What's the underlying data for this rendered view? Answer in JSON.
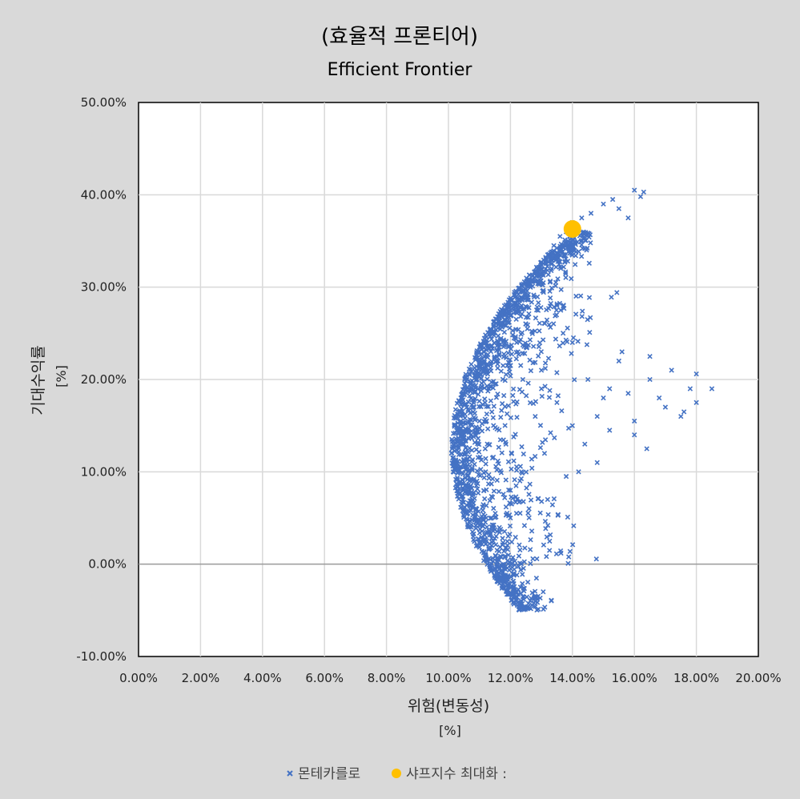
{
  "chart_data": {
    "type": "scatter",
    "title": "(효율적 프론티어)",
    "subtitle": "Efficient Frontier",
    "xlabel": "위험(변동성)",
    "xunit": "[%]",
    "ylabel": "기대수익률",
    "yunit": "[%]",
    "xlim": [
      0,
      20
    ],
    "ylim": [
      -10,
      50
    ],
    "xticks": [
      "0.00%",
      "2.00%",
      "4.00%",
      "6.00%",
      "8.00%",
      "10.00%",
      "12.00%",
      "14.00%",
      "16.00%",
      "18.00%",
      "20.00%"
    ],
    "yticks": [
      "50.00%",
      "40.00%",
      "30.00%",
      "20.00%",
      "10.00%",
      "0.00%",
      "-10.00%"
    ],
    "grid": true,
    "legend_position": "bottom",
    "series": [
      {
        "name": "몬테카를로",
        "marker": "x",
        "color": "#4472c4",
        "points_note": "dense cloud bounded by frontier x≈10.1–13.8, y≈-5 to 36, plus sparse outliers up to x≈18.5",
        "x": [
          10.1,
          10.15,
          10.2,
          10.3,
          10.4,
          10.5,
          10.6,
          10.8,
          11.0,
          11.2,
          11.4,
          11.6,
          11.8,
          12.0,
          12.2,
          12.4,
          12.6,
          12.8,
          13.0,
          13.2,
          13.4,
          13.6,
          13.8,
          14.0,
          14.3,
          14.6,
          15.0,
          15.3,
          15.5,
          15.8,
          16.0,
          16.2,
          16.3,
          12.2,
          12.4,
          12.8,
          13.1,
          10.5,
          10.8,
          11.2,
          11.6,
          12.0,
          12.5,
          13.0,
          13.5,
          14.0,
          14.5,
          15.0,
          15.5,
          16.0,
          16.5,
          17.0,
          17.5,
          17.8,
          18.0,
          18.5,
          16.5,
          15.8,
          15.2,
          14.8,
          14.2,
          13.8,
          13.2,
          12.6,
          12.0,
          11.4,
          10.9,
          10.5,
          11.0,
          11.5,
          12.0,
          12.5,
          13.0,
          13.5,
          14.0,
          14.4,
          14.8,
          15.2,
          15.6,
          16.0,
          16.4,
          16.8,
          17.2,
          17.6,
          18.0
        ],
        "y": [
          12.0,
          10.0,
          15.0,
          8.0,
          18.0,
          6.0,
          20.0,
          3.0,
          23.0,
          1.0,
          25.0,
          -1.0,
          27.0,
          -2.5,
          29.0,
          -3.5,
          30.5,
          -4.0,
          32.0,
          33.5,
          34.5,
          35.5,
          36.0,
          37.0,
          37.5,
          38.0,
          39.0,
          39.5,
          38.5,
          37.5,
          40.5,
          39.8,
          40.3,
          24.0,
          20.0,
          16.0,
          12.0,
          14.0,
          17.0,
          10.0,
          22.0,
          8.0,
          26.0,
          19.0,
          28.0,
          24.0,
          20.0,
          18.0,
          22.0,
          14.0,
          22.5,
          17.0,
          16.0,
          19.0,
          17.5,
          19.0,
          20.0,
          18.5,
          14.5,
          16.0,
          10.0,
          9.5,
          7.0,
          6.0,
          5.0,
          4.0,
          8.5,
          13.0,
          15.5,
          19.5,
          21.5,
          23.5,
          21.0,
          17.5,
          15.0,
          13.0,
          11.0,
          19.0,
          23.0,
          15.5,
          12.5,
          18.0,
          21.0,
          16.5,
          20.6
        ]
      },
      {
        "name": "샤프지수 최대화 :",
        "marker": "circle",
        "color": "#ffc000",
        "x": [
          14.0
        ],
        "y": [
          36.3
        ]
      }
    ]
  }
}
